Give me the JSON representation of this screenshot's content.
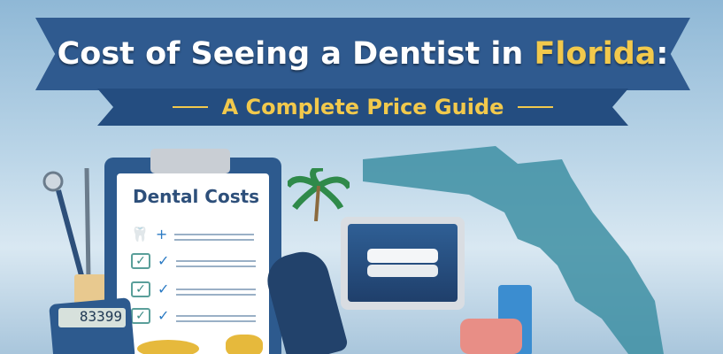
{
  "header": {
    "title_main": "Cost of Seeing a Dentist in ",
    "title_highlight": "Florida",
    "title_colon": ":",
    "subtitle": "A Complete Price Guide"
  },
  "clipboard": {
    "title": "Dental Costs"
  },
  "calculator": {
    "display": "83399"
  },
  "colors": {
    "banner": "#2f5a8f",
    "highlight": "#f2c94c",
    "florida": "#3e8fa3"
  }
}
